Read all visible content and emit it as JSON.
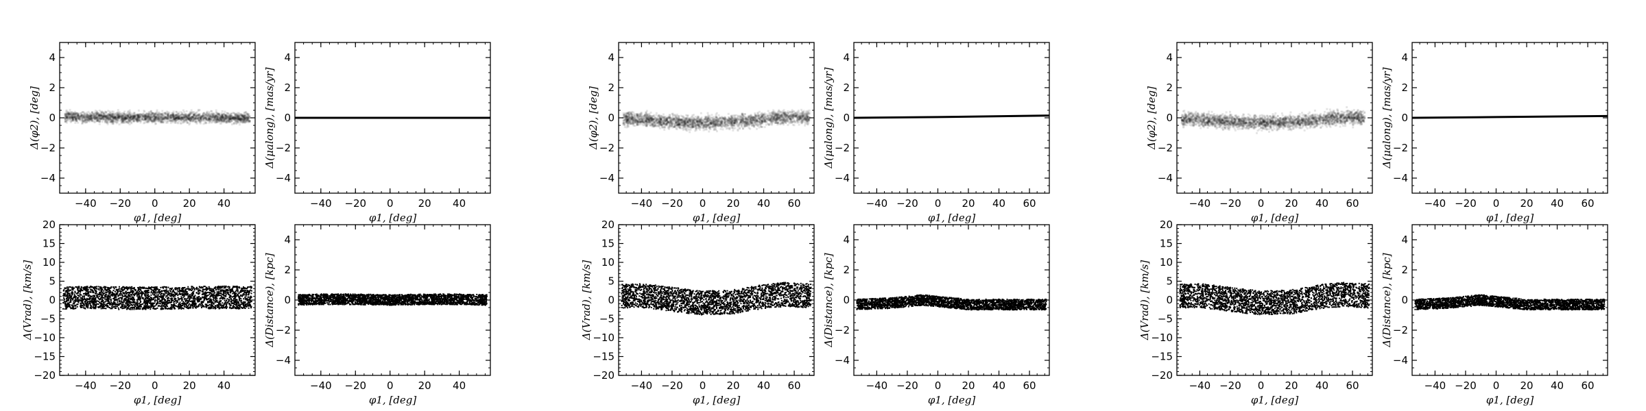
{
  "figure": {
    "colors": {
      "ink": "#000000",
      "frame": "#000000",
      "background": "#ffffff"
    }
  },
  "chart_data": [
    {
      "type": "scatter",
      "group": 1,
      "style": "density",
      "panel": "dphi2",
      "xlabel": "φ1, [deg]",
      "ylabel": "Δ(φ2), [deg]",
      "xlim": [
        -55,
        58
      ],
      "ylim": [
        -5,
        5
      ],
      "xticks": [
        -40,
        -20,
        0,
        20,
        40
      ],
      "yticks": [
        -4,
        -2,
        0,
        2,
        4
      ],
      "x": [
        -50,
        -40,
        -30,
        -20,
        -10,
        0,
        10,
        20,
        30,
        40,
        50,
        55
      ],
      "y": [
        0.1,
        0.0,
        0.05,
        0.0,
        0.05,
        0.0,
        0.05,
        0.0,
        0.05,
        0.0,
        0.0,
        -0.05
      ],
      "spread": 0.35
    },
    {
      "type": "line",
      "group": 1,
      "panel": "dmu",
      "xlabel": "φ1, [deg]",
      "ylabel": "Δ(μalong), [mas/yr]",
      "xlim": [
        -55,
        58
      ],
      "ylim": [
        -5,
        5
      ],
      "xticks": [
        -40,
        -20,
        0,
        20,
        40
      ],
      "yticks": [
        -4,
        -2,
        0,
        2,
        4
      ],
      "x": [
        -55,
        58
      ],
      "y": [
        0.0,
        0.0
      ]
    },
    {
      "type": "scatter",
      "group": 1,
      "style": "band",
      "panel": "dvrad",
      "xlabel": "φ1, [deg]",
      "ylabel": "Δ(Vrad), [km/s]",
      "xlim": [
        -55,
        58
      ],
      "ylim": [
        -20,
        20
      ],
      "xticks": [
        -40,
        -20,
        0,
        20,
        40
      ],
      "yticks": [
        -20,
        -15,
        -10,
        -5,
        0,
        5,
        10,
        15,
        20
      ],
      "x": [
        -55,
        -40,
        -20,
        0,
        20,
        40,
        58
      ],
      "y": [
        0.5,
        0.7,
        0.5,
        0.5,
        0.6,
        0.7,
        0.6
      ],
      "spread": 3.0
    },
    {
      "type": "scatter",
      "group": 1,
      "style": "band",
      "panel": "ddist",
      "xlabel": "φ1, [deg]",
      "ylabel": "Δ(Distance), [kpc]",
      "xlim": [
        -55,
        58
      ],
      "ylim": [
        -5,
        5
      ],
      "xticks": [
        -40,
        -20,
        0,
        20,
        40
      ],
      "yticks": [
        -4,
        -2,
        0,
        2,
        4
      ],
      "x": [
        -55,
        -40,
        -20,
        0,
        20,
        40,
        58
      ],
      "y": [
        0.0,
        0.05,
        0.05,
        0.0,
        0.05,
        0.05,
        0.0
      ],
      "spread": 0.35
    },
    {
      "type": "scatter",
      "group": 2,
      "style": "density",
      "panel": "dphi2",
      "xlabel": "φ1, [deg]",
      "ylabel": "Δ(φ2), [deg]",
      "xlim": [
        -55,
        73
      ],
      "ylim": [
        -5,
        5
      ],
      "xticks": [
        -40,
        -20,
        0,
        20,
        40,
        60
      ],
      "yticks": [
        -4,
        -2,
        0,
        2,
        4
      ],
      "x": [
        -50,
        -40,
        -30,
        -20,
        -10,
        0,
        10,
        20,
        30,
        40,
        50,
        60,
        70
      ],
      "y": [
        -0.1,
        -0.1,
        -0.2,
        -0.25,
        -0.3,
        -0.3,
        -0.3,
        -0.25,
        -0.2,
        -0.1,
        0.0,
        0.05,
        0.0
      ],
      "spread": 0.45
    },
    {
      "type": "line",
      "group": 2,
      "panel": "dmu",
      "xlabel": "φ1, [deg]",
      "ylabel": "Δ(μalong), [mas/yr]",
      "xlim": [
        -55,
        73
      ],
      "ylim": [
        -5,
        5
      ],
      "xticks": [
        -40,
        -20,
        0,
        20,
        40,
        60
      ],
      "yticks": [
        -4,
        -2,
        0,
        2,
        4
      ],
      "x": [
        -55,
        0,
        73
      ],
      "y": [
        0.0,
        0.05,
        0.15
      ]
    },
    {
      "type": "scatter",
      "group": 2,
      "style": "band",
      "panel": "dvrad",
      "xlabel": "φ1, [deg]",
      "ylabel": "Δ(Vrad), [km/s]",
      "xlim": [
        -55,
        73
      ],
      "ylim": [
        -20,
        20
      ],
      "xticks": [
        -40,
        -20,
        0,
        20,
        40,
        60
      ],
      "yticks": [
        -20,
        -15,
        -10,
        -5,
        0,
        5,
        10,
        15,
        20
      ],
      "x": [
        -55,
        -40,
        -20,
        0,
        20,
        40,
        55,
        73
      ],
      "y": [
        1.0,
        1.2,
        0.2,
        -0.8,
        -0.5,
        1.0,
        1.5,
        1.0
      ],
      "spread": 3.2
    },
    {
      "type": "scatter",
      "group": 2,
      "style": "band",
      "panel": "ddist",
      "xlabel": "φ1, [deg]",
      "ylabel": "Δ(Distance), [kpc]",
      "xlim": [
        -55,
        73
      ],
      "ylim": [
        -5,
        5
      ],
      "xticks": [
        -40,
        -20,
        0,
        20,
        40,
        60
      ],
      "yticks": [
        -4,
        -2,
        0,
        2,
        4
      ],
      "x": [
        -55,
        -30,
        -10,
        0,
        20,
        40,
        73
      ],
      "y": [
        -0.3,
        -0.2,
        0.0,
        -0.1,
        -0.3,
        -0.3,
        -0.3
      ],
      "spread": 0.35
    },
    {
      "type": "scatter",
      "group": 3,
      "style": "density",
      "panel": "dphi2",
      "xlabel": "φ1, [deg]",
      "ylabel": "Δ(φ2), [deg]",
      "xlim": [
        -55,
        73
      ],
      "ylim": [
        -5,
        5
      ],
      "xticks": [
        -40,
        -20,
        0,
        20,
        40,
        60
      ],
      "yticks": [
        -4,
        -2,
        0,
        2,
        4
      ],
      "x": [
        -50,
        -40,
        -30,
        -20,
        -10,
        0,
        10,
        20,
        30,
        40,
        50,
        60,
        68
      ],
      "y": [
        -0.1,
        -0.1,
        -0.2,
        -0.25,
        -0.3,
        -0.3,
        -0.3,
        -0.25,
        -0.2,
        -0.1,
        0.0,
        0.05,
        0.0
      ],
      "spread": 0.45
    },
    {
      "type": "line",
      "group": 3,
      "panel": "dmu",
      "xlabel": "φ1, [deg]",
      "ylabel": "Δ(μalong), [mas/yr]",
      "xlim": [
        -55,
        73
      ],
      "ylim": [
        -5,
        5
      ],
      "xticks": [
        -40,
        -20,
        0,
        20,
        40,
        60
      ],
      "yticks": [
        -4,
        -2,
        0,
        2,
        4
      ],
      "x": [
        -55,
        0,
        73
      ],
      "y": [
        0.0,
        0.05,
        0.12
      ]
    },
    {
      "type": "scatter",
      "group": 3,
      "style": "band",
      "panel": "dvrad",
      "xlabel": "φ1, [deg]",
      "ylabel": "Δ(Vrad), [km/s]",
      "xlim": [
        -55,
        73
      ],
      "ylim": [
        -20,
        20
      ],
      "xticks": [
        -40,
        -20,
        0,
        20,
        40,
        60
      ],
      "yticks": [
        -20,
        -15,
        -10,
        -5,
        0,
        5,
        10,
        15,
        20
      ],
      "x": [
        -55,
        -40,
        -20,
        0,
        20,
        40,
        55,
        73
      ],
      "y": [
        1.0,
        1.2,
        0.2,
        -0.8,
        -0.5,
        1.0,
        1.5,
        1.0
      ],
      "spread": 3.2
    },
    {
      "type": "scatter",
      "group": 3,
      "style": "band",
      "panel": "ddist",
      "xlabel": "φ1, [deg]",
      "ylabel": "Δ(Distance), [kpc]",
      "xlim": [
        -55,
        73
      ],
      "ylim": [
        -5,
        5
      ],
      "xticks": [
        -40,
        -20,
        0,
        20,
        40,
        60
      ],
      "yticks": [
        -4,
        -2,
        0,
        2,
        4
      ],
      "x": [
        -55,
        -30,
        -10,
        0,
        20,
        40,
        73
      ],
      "y": [
        -0.3,
        -0.2,
        0.0,
        -0.1,
        -0.3,
        -0.3,
        -0.3
      ],
      "spread": 0.35
    }
  ]
}
